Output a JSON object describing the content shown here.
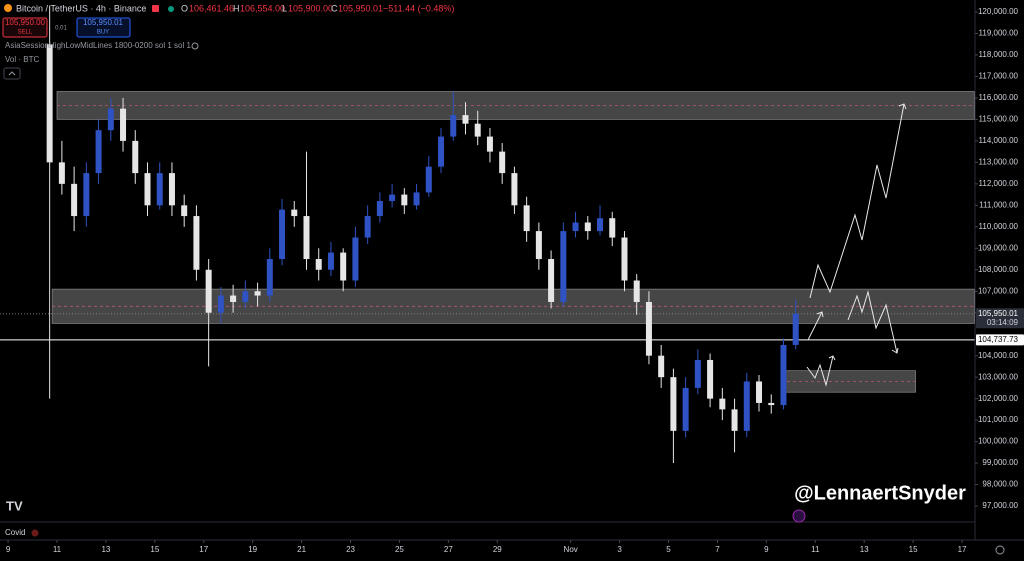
{
  "header": {
    "symbol": "Bitcoin / TetherUS · 4h · Binance",
    "o_label": "O",
    "o": "106,461.46",
    "h_label": "H",
    "h": "106,554.00",
    "l_label": "L",
    "l": "105,900.00",
    "c_label": "C",
    "c": "105,950.01",
    "change": "−511.44 (−0.48%)",
    "sell_price": "105,950.00",
    "sell": "SELL",
    "spread": "0.01",
    "buy_price": "105,950.01",
    "buy": "BUY",
    "indicator": "AsiaSessionHighLowMidLines 1800-0200 sol 1 sol 1",
    "volume": "Vol · BTC"
  },
  "watermark": "@LennaertSnyder",
  "footer": "Covid",
  "chart_data": {
    "type": "candlestick",
    "x": [
      1.7,
      2.2,
      2.7,
      3.2,
      3.7,
      4.2,
      4.7,
      5.2,
      5.7,
      6.2,
      6.7,
      7.2,
      7.7,
      8.2,
      8.7,
      9.2,
      9.7,
      10.2,
      10.7,
      11.2,
      11.7,
      12.2,
      12.7,
      13.2,
      13.7,
      14.2,
      14.7,
      15.2,
      15.7,
      16.2,
      16.7,
      17.2,
      17.7,
      18.2,
      18.7,
      19.2,
      19.7,
      20.2,
      20.7,
      21.2,
      21.7,
      22.2,
      22.7,
      23.2,
      23.7,
      24.2,
      24.7,
      25.2,
      25.7,
      26.2,
      26.7,
      27.2,
      27.7,
      28.2,
      28.7,
      29.2,
      29.7,
      30.2,
      30.7,
      31.2,
      31.7,
      32.2
    ],
    "open": [
      118500,
      113000,
      112000,
      110500,
      112500,
      114500,
      115500,
      114000,
      112500,
      111000,
      112500,
      111000,
      110500,
      108000,
      106000,
      106800,
      106500,
      107000,
      106800,
      108500,
      110800,
      110500,
      108500,
      108000,
      108800,
      107500,
      109500,
      110500,
      111200,
      111500,
      111000,
      111600,
      112800,
      114200,
      115200,
      114800,
      114200,
      113500,
      112500,
      111000,
      109800,
      108500,
      106500,
      109800,
      110200,
      109800,
      110400,
      109500,
      107500,
      106500,
      104000,
      103000,
      100500,
      102500,
      103800,
      102000,
      101500,
      100500,
      102800,
      101800,
      101700,
      104500
    ],
    "high": [
      120300,
      114000,
      112800,
      113000,
      115000,
      116000,
      116000,
      114500,
      113000,
      113000,
      113000,
      111500,
      111000,
      108500,
      107200,
      107300,
      107500,
      107400,
      109000,
      111300,
      111200,
      113500,
      109000,
      109300,
      109000,
      110000,
      111000,
      111600,
      112000,
      111800,
      112000,
      113300,
      114600,
      116300,
      115800,
      115400,
      114600,
      113900,
      112800,
      111400,
      110200,
      108900,
      110200,
      110700,
      110500,
      111000,
      110700,
      109800,
      107800,
      107000,
      104500,
      103400,
      103000,
      104300,
      104100,
      102500,
      102000,
      103200,
      103100,
      102200,
      104800,
      106600
    ],
    "low": [
      102000,
      111500,
      109800,
      110000,
      112000,
      114000,
      113500,
      112000,
      110500,
      110800,
      110500,
      110000,
      107500,
      103500,
      105500,
      106000,
      106200,
      106300,
      106500,
      108200,
      110000,
      108000,
      107500,
      107700,
      107000,
      107200,
      109200,
      110200,
      110900,
      110600,
      110800,
      111400,
      112500,
      114000,
      114300,
      113800,
      113000,
      112000,
      110600,
      109300,
      108000,
      106200,
      106300,
      109500,
      109400,
      109600,
      109100,
      107000,
      105900,
      103600,
      102500,
      99000,
      100200,
      102200,
      101600,
      101000,
      99500,
      100200,
      101400,
      101300,
      101500,
      104300
    ],
    "close": [
      113000,
      112000,
      110500,
      112500,
      114500,
      115500,
      114000,
      112500,
      111000,
      112500,
      111000,
      110500,
      108000,
      106000,
      106800,
      106500,
      107000,
      106800,
      108500,
      110800,
      110500,
      108500,
      108000,
      108800,
      107500,
      109500,
      110500,
      111200,
      111500,
      111000,
      111600,
      112800,
      114200,
      115200,
      114800,
      114200,
      113500,
      112500,
      111000,
      109800,
      108500,
      106500,
      109800,
      110200,
      109800,
      110400,
      109500,
      107500,
      106500,
      104000,
      103000,
      100500,
      102500,
      103800,
      102000,
      101500,
      100500,
      102800,
      101800,
      101700,
      104500,
      105950
    ],
    "up_color": "#2f52c4",
    "down_color": "#e6e6e6",
    "xlim": [
      -0.33,
      39.53
    ],
    "xticks": [
      {
        "value": 0,
        "label": "9"
      },
      {
        "value": 2,
        "label": "11"
      },
      {
        "value": 4,
        "label": "13"
      },
      {
        "value": 6,
        "label": "15"
      },
      {
        "value": 8,
        "label": "17"
      },
      {
        "value": 10,
        "label": "19"
      },
      {
        "value": 12,
        "label": "21"
      },
      {
        "value": 14,
        "label": "23"
      },
      {
        "value": 16,
        "label": "25"
      },
      {
        "value": 18,
        "label": "27"
      },
      {
        "value": 20,
        "label": "29"
      },
      {
        "value": 23,
        "label": "Nov"
      },
      {
        "value": 25,
        "label": "3"
      },
      {
        "value": 27,
        "label": "5"
      },
      {
        "value": 29,
        "label": "7"
      },
      {
        "value": 31,
        "label": "9"
      },
      {
        "value": 33,
        "label": "11"
      },
      {
        "value": 35,
        "label": "13"
      },
      {
        "value": 37,
        "label": "15"
      },
      {
        "value": 39,
        "label": "17"
      }
    ],
    "ylim": [
      96257,
      120559
    ],
    "yticks": [
      {
        "value": 97000,
        "label": "97,000.00"
      },
      {
        "value": 98000,
        "label": "98,000.00"
      },
      {
        "value": 99000,
        "label": "99,000.00"
      },
      {
        "value": 100000,
        "label": "100,000.00"
      },
      {
        "value": 101000,
        "label": "101,000.00"
      },
      {
        "value": 102000,
        "label": "102,000.00"
      },
      {
        "value": 103000,
        "label": "103,000.00"
      },
      {
        "value": 104000,
        "label": "104,000.00"
      },
      {
        "value": 106000,
        "label": "106,000.00"
      },
      {
        "value": 107000,
        "label": "107,000.00"
      },
      {
        "value": 108000,
        "label": "108,000.00"
      },
      {
        "value": 109000,
        "label": "109,000.00"
      },
      {
        "value": 110000,
        "label": "110,000.00"
      },
      {
        "value": 111000,
        "label": "111,000.00"
      },
      {
        "value": 112000,
        "label": "112,000.00"
      },
      {
        "value": 113000,
        "label": "113,000.00"
      },
      {
        "value": 114000,
        "label": "114,000.00"
      },
      {
        "value": 115000,
        "label": "115,000.00"
      },
      {
        "value": 116000,
        "label": "116,000.00"
      },
      {
        "value": 117000,
        "label": "117,000.00"
      },
      {
        "value": 118000,
        "label": "118,000.00"
      },
      {
        "value": 119000,
        "label": "119,000.00"
      },
      {
        "value": 120000,
        "label": "120,000.00"
      }
    ],
    "zones": [
      {
        "x0": 2.0,
        "x1": 39.5,
        "y0": 115000,
        "y1": 116300
      },
      {
        "x0": 1.8,
        "x1": 39.5,
        "y0": 105500,
        "y1": 107100
      },
      {
        "x0": 31.6,
        "x1": 37.1,
        "y0": 102300,
        "y1": 103300
      }
    ],
    "price_lines": [
      {
        "value": 105950.01,
        "label": "105,950.01",
        "sublabel": "03:14:09"
      },
      {
        "value": 104737.73,
        "label": "104,737.73"
      }
    ]
  }
}
